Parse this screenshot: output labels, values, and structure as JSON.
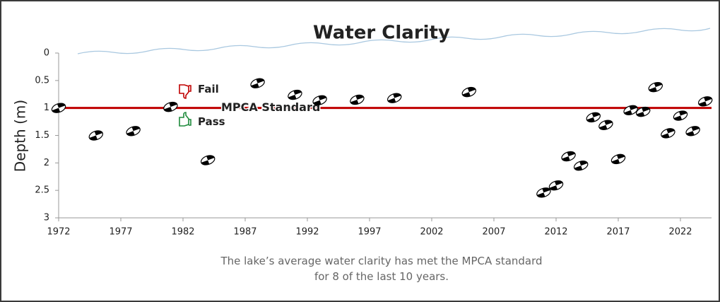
{
  "chart_data": {
    "type": "scatter",
    "title": "Water Clarity",
    "ylabel": "Depth  (m)",
    "x": [
      1972,
      1975,
      1978,
      1981,
      1984,
      1988,
      1991,
      1993,
      1996,
      1999,
      2005,
      2011,
      2012,
      2013,
      2014,
      2015,
      2016,
      2017,
      2018,
      2019,
      2020,
      2021,
      2022,
      2023,
      2024
    ],
    "values": [
      1.0,
      1.5,
      1.42,
      0.98,
      1.95,
      0.55,
      0.76,
      0.86,
      0.85,
      0.82,
      0.71,
      2.54,
      2.41,
      1.88,
      2.05,
      1.17,
      1.31,
      1.93,
      1.04,
      1.07,
      0.62,
      1.46,
      1.14,
      1.42,
      0.88
    ],
    "xlim": [
      1972,
      2024.5
    ],
    "xticks": [
      1972,
      1977,
      1982,
      1987,
      1992,
      1997,
      2002,
      2007,
      2012,
      2017,
      2022
    ],
    "ylim": [
      0,
      3
    ],
    "yticks": [
      0,
      0.5,
      1,
      1.5,
      2,
      2.5,
      3
    ],
    "y_inverted": true,
    "standard": {
      "label": "MPCA Standard",
      "value": 1,
      "color": "#c00000"
    },
    "fail_label": "Fail",
    "fail_color": "#c00000",
    "pass_label": "Pass",
    "pass_color": "#1e8a3c",
    "caption": "The lake’s average water clarity has met the MPCA standard for 8 of the last 10 years."
  }
}
